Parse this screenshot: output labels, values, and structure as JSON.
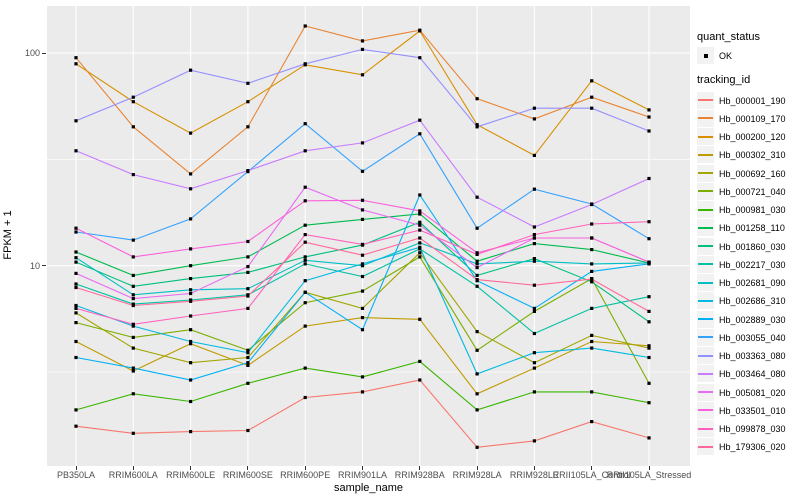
{
  "figure": {
    "y_axis": {
      "title": "FPKM + 1",
      "tick_labels": [
        "100",
        "10"
      ],
      "tick_values": [
        100,
        10
      ],
      "minor_tick_values": [
        31.62,
        3.162
      ]
    },
    "x_axis": {
      "title": "sample_name"
    },
    "legend": {
      "quant_status": {
        "title": "quant_status",
        "items": [
          {
            "label": "OK",
            "shape": "black-point"
          }
        ]
      },
      "tracking_id": {
        "title": "tracking_id"
      }
    },
    "colors": {
      "panel_bg": "#EBEBEB",
      "grid": "#FFFFFF",
      "tick_label": "#4D4D4D",
      "axis_title": "#000000",
      "point": "#000000",
      "legend_key_bg": "#F2F2F2"
    }
  },
  "chart_data": {
    "type": "line",
    "title": "",
    "xlabel": "sample_name",
    "ylabel": "FPKM + 1",
    "log_y": true,
    "ylim": [
      1.14,
      166
    ],
    "grid": true,
    "legend_position": "right",
    "point_shape": "small-black-square",
    "quant_status": "OK",
    "categories": [
      "PB350LA",
      "RRIM600LA",
      "RRIM600LE",
      "RRIM600SE",
      "RRIM600PE",
      "RRIM901LA",
      "RRIM928BA",
      "RRIM928LA",
      "RRIM928LE",
      "RRII105LA_Control",
      "RRII105LA_Stressed"
    ],
    "series": [
      {
        "name": "Hb_000001_190",
        "color": "#F8766D",
        "values": [
          1.76,
          1.63,
          1.66,
          1.68,
          2.4,
          2.55,
          2.9,
          1.4,
          1.5,
          1.85,
          1.55
        ]
      },
      {
        "name": "Hb_000109_170",
        "color": "#EA8331",
        "values": [
          95,
          45,
          27,
          45,
          134,
          114,
          128,
          61,
          49,
          62,
          50
        ]
      },
      {
        "name": "Hb_000200_120",
        "color": "#D89000",
        "values": [
          89,
          59,
          42,
          59,
          88,
          79,
          127,
          46,
          33,
          74,
          54
        ]
      },
      {
        "name": "Hb_000302_310",
        "color": "#C09B00",
        "values": [
          4.4,
          3.2,
          4.3,
          3.4,
          5.2,
          5.7,
          5.6,
          2.5,
          3.3,
          4.4,
          4.2
        ]
      },
      {
        "name": "Hb_000692_160",
        "color": "#A3A500",
        "values": [
          6.0,
          4.1,
          3.5,
          3.7,
          7.5,
          6.3,
          11.5,
          4.9,
          3.5,
          4.7,
          4.1
        ]
      },
      {
        "name": "Hb_000721_040",
        "color": "#7CAE00",
        "values": [
          5.4,
          4.6,
          5.0,
          4.0,
          6.7,
          7.6,
          11.0,
          4.0,
          6.1,
          8.7,
          2.8
        ]
      },
      {
        "name": "Hb_000981_030",
        "color": "#39B600",
        "values": [
          2.1,
          2.5,
          2.3,
          2.8,
          3.3,
          3.0,
          3.55,
          2.1,
          2.55,
          2.55,
          2.27
        ]
      },
      {
        "name": "Hb_001258_110",
        "color": "#00BB4E",
        "values": [
          11.6,
          9.0,
          10.0,
          11.0,
          15.5,
          16.5,
          17.5,
          10.5,
          12.7,
          11.9,
          10.3
        ]
      },
      {
        "name": "Hb_001860_030",
        "color": "#00BF7D",
        "values": [
          10.4,
          8.0,
          8.7,
          9.3,
          11.0,
          12.5,
          16.0,
          9.0,
          10.8,
          8.4,
          5.45
        ]
      },
      {
        "name": "Hb_002217_030",
        "color": "#00C1A3",
        "values": [
          8.2,
          6.6,
          6.9,
          7.3,
          10.2,
          8.9,
          12.0,
          8.0,
          4.8,
          6.3,
          7.15
        ]
      },
      {
        "name": "Hb_002681_090",
        "color": "#00BFC4",
        "values": [
          10.9,
          7.3,
          7.7,
          7.8,
          10.6,
          10.0,
          12.8,
          10.2,
          10.5,
          10.2,
          10.3
        ]
      },
      {
        "name": "Hb_002686_310",
        "color": "#00BAE0",
        "values": [
          6.5,
          5.2,
          4.4,
          3.9,
          8.5,
          10.2,
          12.2,
          3.1,
          3.9,
          4.1,
          3.7
        ]
      },
      {
        "name": "Hb_002889_030",
        "color": "#00B0F6",
        "values": [
          3.7,
          3.3,
          2.9,
          3.5,
          7.5,
          5.0,
          21.5,
          8.5,
          6.3,
          9.4,
          10.2
        ]
      },
      {
        "name": "Hb_003055_040",
        "color": "#35A2FF",
        "values": [
          14.4,
          13.2,
          16.6,
          27.7,
          46.5,
          27.8,
          41.7,
          15.0,
          22.9,
          19.5,
          13.4
        ]
      },
      {
        "name": "Hb_003363_080",
        "color": "#9590FF",
        "values": [
          48,
          62,
          83,
          72,
          89,
          104,
          95,
          45,
          55,
          55,
          43
        ]
      },
      {
        "name": "Hb_003464_080",
        "color": "#C77CFF",
        "values": [
          34.7,
          26.8,
          23,
          28,
          34.7,
          37.8,
          48.3,
          21,
          15.2,
          19.4,
          25.7
        ]
      },
      {
        "name": "Hb_005081_020",
        "color": "#E76BF3",
        "values": [
          9.2,
          7.0,
          7.4,
          9.9,
          23.4,
          18.3,
          15.5,
          9.8,
          13.5,
          13.5,
          10.4
        ]
      },
      {
        "name": "Hb_033501_010",
        "color": "#FA62DB",
        "values": [
          15.0,
          11.0,
          12.0,
          13.0,
          20.2,
          20.3,
          18.1,
          11.5,
          13.5,
          13.5,
          10.4
        ]
      },
      {
        "name": "Hb_099878_030",
        "color": "#FF62BC",
        "values": [
          6.3,
          5.3,
          5.8,
          6.3,
          14.0,
          12.6,
          14.7,
          11.3,
          14.0,
          15.7,
          16.1
        ]
      },
      {
        "name": "Hb_179306_020",
        "color": "#FF6A98",
        "values": [
          7.9,
          6.5,
          6.8,
          7.2,
          12.9,
          11.2,
          13.5,
          8.6,
          8.1,
          8.65,
          6.1
        ]
      }
    ]
  }
}
